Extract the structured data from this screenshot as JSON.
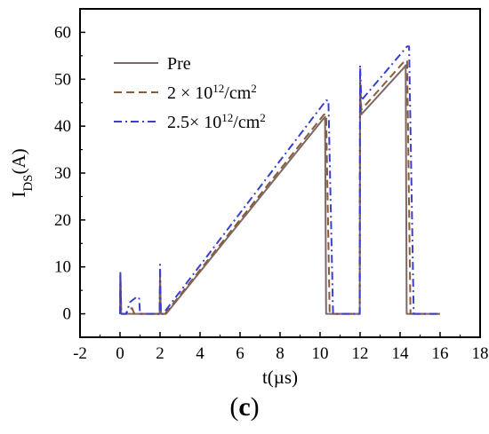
{
  "chart_data": {
    "type": "line",
    "xlabel": "t(µs)",
    "ylabel_main": "I",
    "ylabel_sub": "DS",
    "ylabel_suffix": "(A)",
    "xlim": [
      -2,
      18
    ],
    "ylim": [
      -5,
      65
    ],
    "xticks": [
      -2,
      0,
      2,
      4,
      6,
      8,
      10,
      12,
      14,
      16,
      18
    ],
    "yticks": [
      0,
      10,
      20,
      30,
      40,
      50,
      60
    ],
    "legend_placement": "top-left",
    "grid": false,
    "series": [
      {
        "name": "Pre",
        "color": "#7a6a66",
        "dash": "solid",
        "x": [
          0,
          0.02,
          0.06,
          0.35,
          0.45,
          1.98,
          2.0,
          2.04,
          2.3,
          10.15,
          10.25,
          10.3,
          11.98,
          12.0,
          12.06,
          14.2,
          14.28,
          14.33,
          16.0
        ],
        "y": [
          0,
          8.0,
          0,
          0,
          0,
          0,
          7.0,
          0,
          0,
          41.5,
          42.0,
          0,
          0,
          48.0,
          42.5,
          52.5,
          53.0,
          0,
          0
        ]
      },
      {
        "name": "2 × 10^12/cm^2",
        "legend_prefix": "2 × 10",
        "legend_sup": "12",
        "legend_suffix": "/cm",
        "legend_sup2": "2",
        "color": "#8b5a3c",
        "dash": "dashed",
        "x": [
          0,
          0.02,
          0.06,
          0.3,
          0.45,
          0.6,
          0.72,
          1.98,
          2.0,
          2.04,
          2.25,
          10.2,
          10.3,
          10.48,
          11.98,
          12.0,
          12.06,
          14.25,
          14.35,
          14.52,
          16.0
        ],
        "y": [
          0,
          8.0,
          0,
          0,
          1.0,
          1.2,
          0,
          0,
          8.0,
          0,
          0,
          42.5,
          42.5,
          0,
          0,
          50.0,
          43.5,
          54.0,
          54.0,
          0,
          0
        ]
      },
      {
        "name": "2.5× 10^12/cm^2",
        "legend_prefix": "2.5× 10",
        "legend_sup": "12",
        "legend_suffix": "/cm",
        "legend_sup2": "2",
        "color": "#3a3fd0",
        "dash": "dashdot",
        "x": [
          0,
          0.02,
          0.06,
          0.3,
          0.5,
          0.8,
          0.95,
          1.0,
          1.98,
          2.0,
          2.04,
          2.15,
          10.3,
          10.42,
          10.65,
          11.98,
          12.0,
          12.06,
          14.35,
          14.45,
          14.68,
          16.0
        ],
        "y": [
          0,
          9.0,
          0,
          0,
          2.5,
          3.5,
          3.5,
          0,
          0,
          10.5,
          0,
          0,
          45.5,
          45.5,
          0,
          0,
          53.0,
          45.5,
          57.0,
          57.0,
          0,
          0
        ]
      }
    ]
  },
  "panel_label": "(c)"
}
